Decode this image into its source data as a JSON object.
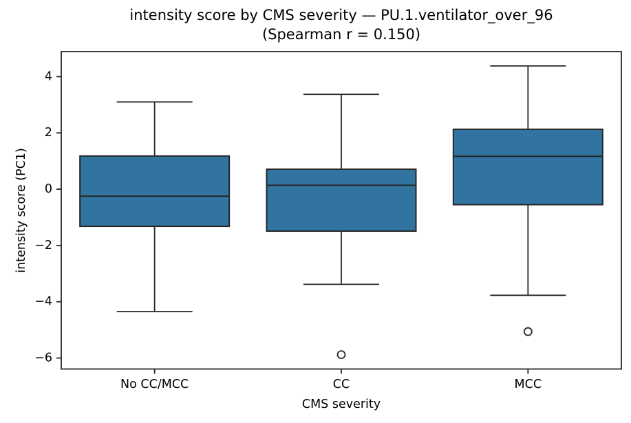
{
  "chart_data": {
    "type": "boxplot",
    "title": "intensity score by CMS severity — PU.1.ventilator_over_96",
    "subtitle": "(Spearman r = 0.150)",
    "xlabel": "CMS severity",
    "ylabel": "intensity score (PC1)",
    "categories": [
      "No CC/MCC",
      "CC",
      "MCC"
    ],
    "yticks": [
      {
        "v": 4,
        "label": "4"
      },
      {
        "v": 2,
        "label": "2"
      },
      {
        "v": 0,
        "label": "0"
      },
      {
        "v": -2,
        "label": "−2"
      },
      {
        "v": -4,
        "label": "−4"
      },
      {
        "v": -6,
        "label": "−6"
      }
    ],
    "ylim": [
      -6.39,
      4.89
    ],
    "grid": false,
    "legend": "none",
    "box_color": "#3274a1",
    "line_color": "#262626",
    "outlier_fill": "#ffffff",
    "series": [
      {
        "category": "No CC/MCC",
        "whisker_low": -4.35,
        "q1": -1.32,
        "median": -0.25,
        "q3": 1.18,
        "whisker_high": 3.1,
        "outliers": []
      },
      {
        "category": "CC",
        "whisker_low": -3.38,
        "q1": -1.49,
        "median": 0.14,
        "q3": 0.71,
        "whisker_high": 3.37,
        "outliers": [
          -5.88
        ]
      },
      {
        "category": "MCC",
        "whisker_low": -3.77,
        "q1": -0.55,
        "median": 1.17,
        "q3": 2.13,
        "whisker_high": 4.38,
        "outliers": [
          -5.06
        ]
      }
    ]
  }
}
